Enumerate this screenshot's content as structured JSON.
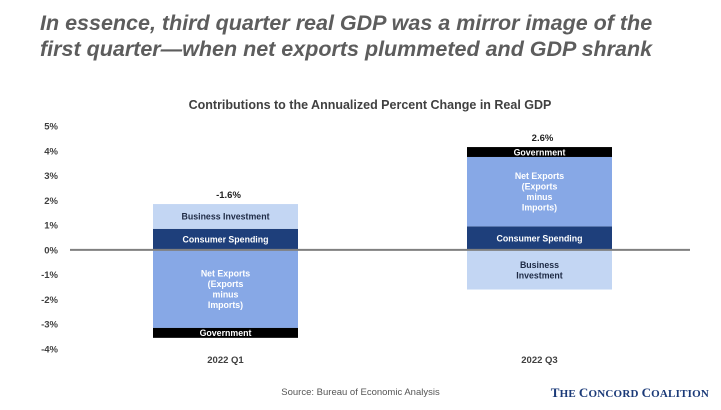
{
  "headline": {
    "line1": "In essence, third quarter real GDP was a mirror image of the",
    "line2": "first quarter—when net exports plummeted and GDP shrank"
  },
  "source": "Source: Bureau of Economic Analysis",
  "logo": "The Concord Coalition",
  "colors": {
    "business_investment": "#c3d6f3",
    "consumer_spending": "#1e3f7b",
    "net_exports": "#87a8e6",
    "government": "#000000",
    "zero_line": "#808080"
  },
  "chart_data": {
    "type": "bar",
    "stacked": true,
    "title": "Contributions to the Annualized Percent Change in Real GDP",
    "categories": [
      "2022 Q1",
      "2022 Q3"
    ],
    "ylim": [
      -4,
      5
    ],
    "yticks": [
      "5%",
      "4%",
      "3%",
      "2%",
      "1%",
      "0%",
      "-1%",
      "-2%",
      "-3%",
      "-4%"
    ],
    "series": [
      {
        "key": "consumer_spending",
        "values": [
          0.85,
          0.95
        ],
        "segment_labels": [
          [
            "Consumer Spending"
          ],
          [
            "Consumer Spending"
          ]
        ],
        "label_color": "#ffffff"
      },
      {
        "key": "business_investment",
        "values": [
          1.0,
          -1.6
        ],
        "segment_labels": [
          [
            "Business Investment"
          ],
          [
            "Business",
            "Investment"
          ]
        ],
        "label_color": "#1e2a44"
      },
      {
        "key": "net_exports",
        "values": [
          -3.15,
          2.8
        ],
        "segment_labels": [
          [
            "Net Exports",
            "(Exports",
            "minus",
            "Imports)"
          ],
          [
            "Net Exports",
            "(Exports",
            "minus",
            "Imports)"
          ]
        ],
        "label_color": "#ffffff"
      },
      {
        "key": "government",
        "values": [
          -0.4,
          0.4
        ],
        "segment_labels": [
          [
            "Government"
          ],
          [
            "Government"
          ]
        ],
        "label_color": "#ffffff"
      }
    ],
    "totals": [
      "-1.6%",
      "2.6%"
    ],
    "gridlines": false,
    "legend": "none"
  }
}
